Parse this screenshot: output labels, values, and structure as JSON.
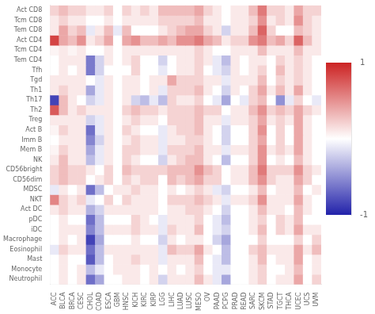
{
  "chart_data": {
    "type": "heatmap",
    "title": "",
    "rows": [
      "Act CD8",
      "Tcm CD8",
      "Tem CD8",
      "Act CD4",
      "Tcm CD4",
      "Tem CD4",
      "Tfh",
      "Tgd",
      "Th1",
      "Th17",
      "Th2",
      "Treg",
      "Act B",
      "Imm B",
      "Mem B",
      "NK",
      "CD56bright",
      "CD56dim",
      "MDSC",
      "NKT",
      "Act DC",
      "pDC",
      "iDC",
      "Macrophage",
      "Eosinophil",
      "Mast",
      "Monocyte",
      "Neutrophil"
    ],
    "categories": [
      "ACC",
      "BLCA",
      "BRCA",
      "CESC",
      "CHOL",
      "COAD",
      "ESCA",
      "GBM",
      "HNSC",
      "KICH",
      "KIRC",
      "KIRP",
      "LGG",
      "LIHC",
      "LUAD",
      "LUSC",
      "MESO",
      "OV",
      "PAAD",
      "PCPG",
      "PRAD",
      "READ",
      "SARC",
      "SKCM",
      "STAD",
      "TGCT",
      "THCA",
      "UCEC",
      "UCS",
      "UVM"
    ],
    "values": [
      [
        0.2,
        0.3,
        0.2,
        0.2,
        0.1,
        0.1,
        0.2,
        0.0,
        0.2,
        0.1,
        0.2,
        0.1,
        0.3,
        0.3,
        0.3,
        0.3,
        0.4,
        0.2,
        0.1,
        0.0,
        0.1,
        0.1,
        0.3,
        0.6,
        0.2,
        0.2,
        0.1,
        0.4,
        0.2,
        0.2
      ],
      [
        0.1,
        0.2,
        0.1,
        0.1,
        0.0,
        0.0,
        0.1,
        0.0,
        0.1,
        0.1,
        0.1,
        0.1,
        0.2,
        0.2,
        0.2,
        0.2,
        0.3,
        0.1,
        0.1,
        0.0,
        0.1,
        0.1,
        0.2,
        0.5,
        0.1,
        0.2,
        0.1,
        0.5,
        0.2,
        0.1
      ],
      [
        0.1,
        0.4,
        0.2,
        0.3,
        -0.1,
        0.1,
        0.3,
        -0.1,
        0.3,
        0.0,
        0.0,
        0.0,
        0.1,
        0.2,
        0.3,
        0.4,
        0.4,
        0.2,
        0.1,
        -0.2,
        0.1,
        0.1,
        0.3,
        0.7,
        0.2,
        0.0,
        0.0,
        0.3,
        0.2,
        0.1
      ],
      [
        0.85,
        0.4,
        0.3,
        0.5,
        0.1,
        0.2,
        0.4,
        0.0,
        0.4,
        0.5,
        0.3,
        0.3,
        0.4,
        0.3,
        0.5,
        0.5,
        0.6,
        0.4,
        0.3,
        0.1,
        0.2,
        0.2,
        0.5,
        0.6,
        0.3,
        0.4,
        0.2,
        0.7,
        0.3,
        0.1
      ],
      [
        0.05,
        0.1,
        0.05,
        0.1,
        0.0,
        0.0,
        0.1,
        0.0,
        0.1,
        0.1,
        0.1,
        0.1,
        0.1,
        0.1,
        0.1,
        0.1,
        0.2,
        0.1,
        0.0,
        0.0,
        0.1,
        0.1,
        0.1,
        0.3,
        0.1,
        0.1,
        0.1,
        0.3,
        0.1,
        0.1
      ],
      [
        0.0,
        0.1,
        0.1,
        0.1,
        -0.6,
        -0.2,
        0.1,
        0.0,
        0.1,
        0.2,
        0.0,
        0.0,
        -0.2,
        0.0,
        0.1,
        0.1,
        0.2,
        0.1,
        -0.1,
        -0.3,
        0.1,
        0.0,
        0.1,
        0.1,
        0.0,
        0.2,
        0.1,
        0.2,
        0.1,
        0.0
      ],
      [
        0.0,
        0.1,
        0.0,
        0.1,
        -0.6,
        -0.2,
        0.0,
        0.0,
        0.0,
        0.2,
        0.0,
        0.0,
        -0.1,
        0.0,
        0.1,
        0.1,
        0.2,
        0.0,
        -0.1,
        -0.2,
        0.1,
        0.0,
        0.1,
        0.2,
        0.0,
        0.3,
        0.1,
        0.2,
        0.1,
        0.0
      ],
      [
        0.1,
        0.1,
        0.1,
        0.1,
        0.0,
        -0.1,
        0.1,
        0.0,
        0.1,
        0.1,
        0.0,
        0.1,
        0.1,
        0.4,
        0.2,
        0.2,
        0.2,
        0.1,
        0.1,
        -0.1,
        0.1,
        0.1,
        0.1,
        0.3,
        0.0,
        0.2,
        0.1,
        0.2,
        0.1,
        0.0
      ],
      [
        0.1,
        0.2,
        0.1,
        0.1,
        -0.4,
        -0.1,
        0.1,
        0.0,
        0.1,
        0.1,
        0.0,
        0.1,
        -0.1,
        0.2,
        0.2,
        0.2,
        0.3,
        0.1,
        0.0,
        -0.2,
        0.1,
        0.0,
        0.2,
        0.4,
        0.1,
        0.3,
        0.1,
        0.4,
        0.1,
        0.0
      ],
      [
        -0.85,
        0.3,
        0.1,
        0.0,
        -0.2,
        -0.1,
        0.1,
        0.0,
        0.1,
        -0.2,
        -0.3,
        -0.1,
        -0.3,
        0.2,
        0.1,
        0.1,
        0.2,
        0.0,
        -0.1,
        -0.4,
        0.0,
        -0.1,
        0.2,
        0.3,
        0.0,
        -0.5,
        -0.1,
        0.2,
        0.0,
        -0.1
      ],
      [
        0.75,
        0.3,
        0.1,
        0.2,
        0.1,
        0.1,
        0.1,
        0.0,
        0.2,
        0.3,
        0.2,
        0.2,
        0.1,
        0.2,
        0.2,
        0.2,
        0.3,
        0.2,
        0.2,
        0.0,
        0.1,
        0.1,
        0.3,
        0.5,
        0.2,
        0.3,
        0.2,
        0.4,
        0.2,
        0.1
      ],
      [
        0.1,
        0.1,
        0.1,
        0.1,
        -0.2,
        -0.1,
        0.1,
        0.0,
        0.1,
        0.2,
        0.1,
        0.1,
        0.0,
        0.2,
        0.2,
        0.2,
        0.3,
        0.1,
        0.1,
        -0.1,
        0.1,
        0.1,
        0.2,
        0.4,
        0.1,
        0.2,
        0.1,
        0.4,
        0.1,
        0.0
      ],
      [
        0.05,
        0.2,
        0.1,
        0.1,
        -0.65,
        -0.1,
        0.1,
        0.0,
        0.2,
        0.1,
        0.0,
        0.0,
        -0.1,
        0.1,
        0.2,
        0.2,
        0.3,
        0.1,
        0.0,
        -0.2,
        0.0,
        0.0,
        0.2,
        0.5,
        0.0,
        0.2,
        0.0,
        0.4,
        0.1,
        0.0
      ],
      [
        0.0,
        0.1,
        0.1,
        0.1,
        -0.55,
        -0.2,
        0.1,
        0.0,
        0.1,
        0.2,
        0.1,
        0.1,
        -0.1,
        0.1,
        0.1,
        0.2,
        0.2,
        0.1,
        0.0,
        -0.2,
        0.0,
        0.0,
        0.2,
        0.4,
        0.0,
        0.2,
        0.0,
        0.4,
        0.1,
        0.0
      ],
      [
        0.05,
        0.2,
        0.1,
        0.1,
        -0.4,
        -0.1,
        0.1,
        0.0,
        0.2,
        0.2,
        0.1,
        0.1,
        -0.1,
        0.2,
        0.2,
        0.2,
        0.3,
        0.1,
        0.1,
        -0.1,
        0.1,
        0.1,
        0.2,
        0.5,
        0.1,
        0.2,
        0.1,
        0.4,
        0.1,
        0.0
      ],
      [
        0.1,
        0.3,
        0.1,
        0.1,
        -0.3,
        -0.1,
        0.1,
        0.0,
        0.2,
        0.1,
        0.0,
        0.0,
        -0.2,
        0.1,
        0.2,
        0.3,
        0.3,
        0.1,
        0.0,
        -0.3,
        0.0,
        0.0,
        0.2,
        0.5,
        0.0,
        0.1,
        0.0,
        0.3,
        0.1,
        0.0
      ],
      [
        0.2,
        0.3,
        0.2,
        0.2,
        0.1,
        0.0,
        0.2,
        0.0,
        0.3,
        0.2,
        0.2,
        0.2,
        0.2,
        0.3,
        0.3,
        0.3,
        0.5,
        0.3,
        0.2,
        0.0,
        0.1,
        0.1,
        0.3,
        0.6,
        0.2,
        0.2,
        0.2,
        0.5,
        0.2,
        0.1
      ],
      [
        0.2,
        0.3,
        0.2,
        0.2,
        0.0,
        0.1,
        0.2,
        0.0,
        0.2,
        0.1,
        0.2,
        0.2,
        0.0,
        0.3,
        0.2,
        0.3,
        0.4,
        0.2,
        0.2,
        0.0,
        0.1,
        0.1,
        0.3,
        0.5,
        0.2,
        0.1,
        0.1,
        0.4,
        0.2,
        0.0
      ],
      [
        -0.1,
        0.1,
        0.0,
        0.1,
        -0.65,
        -0.3,
        0.0,
        0.1,
        0.1,
        0.2,
        0.1,
        0.1,
        0.0,
        0.1,
        0.0,
        0.1,
        0.2,
        0.1,
        -0.1,
        -0.2,
        0.0,
        0.0,
        0.1,
        0.3,
        0.0,
        0.1,
        0.1,
        0.3,
        0.0,
        0.1
      ],
      [
        0.55,
        0.2,
        0.1,
        0.2,
        -0.1,
        0.0,
        0.2,
        0.0,
        0.2,
        0.1,
        0.1,
        0.1,
        0.0,
        0.2,
        0.2,
        0.2,
        0.3,
        0.2,
        0.1,
        -0.1,
        0.1,
        0.1,
        0.2,
        0.5,
        0.1,
        0.1,
        0.1,
        0.4,
        0.1,
        0.0
      ],
      [
        0.1,
        0.2,
        0.1,
        0.1,
        -0.35,
        -0.2,
        0.1,
        0.1,
        0.1,
        0.1,
        0.1,
        0.1,
        0.0,
        0.1,
        0.1,
        0.2,
        0.2,
        0.1,
        0.0,
        -0.2,
        0.0,
        0.0,
        0.1,
        0.3,
        0.1,
        0.1,
        0.0,
        0.3,
        0.1,
        0.0
      ],
      [
        0.0,
        0.1,
        0.0,
        0.0,
        -0.65,
        -0.3,
        0.0,
        0.0,
        0.0,
        0.2,
        0.1,
        0.0,
        -0.1,
        0.1,
        0.1,
        0.1,
        0.2,
        0.0,
        -0.1,
        -0.3,
        0.0,
        0.0,
        0.1,
        0.2,
        0.0,
        0.2,
        0.1,
        0.3,
        0.0,
        0.0
      ],
      [
        0.0,
        0.1,
        0.1,
        0.1,
        -0.55,
        -0.3,
        0.1,
        0.1,
        0.1,
        0.2,
        0.1,
        0.1,
        -0.1,
        0.2,
        0.1,
        0.1,
        0.3,
        0.0,
        -0.1,
        -0.2,
        0.0,
        0.0,
        0.1,
        0.3,
        0.0,
        0.2,
        0.1,
        0.4,
        0.1,
        0.1
      ],
      [
        0.0,
        0.1,
        0.0,
        0.1,
        -0.85,
        -0.4,
        0.0,
        0.0,
        0.0,
        0.1,
        0.0,
        0.0,
        -0.2,
        0.1,
        0.0,
        0.1,
        0.1,
        0.0,
        -0.2,
        -0.4,
        0.0,
        0.0,
        0.0,
        0.2,
        0.0,
        0.0,
        0.0,
        0.2,
        0.0,
        0.2
      ],
      [
        -0.1,
        0.2,
        0.1,
        0.1,
        -0.65,
        -0.3,
        0.1,
        0.1,
        0.1,
        0.1,
        0.1,
        0.1,
        -0.1,
        0.3,
        0.2,
        0.2,
        0.4,
        0.1,
        0.0,
        -0.3,
        0.0,
        0.0,
        0.2,
        0.3,
        0.1,
        0.1,
        0.1,
        0.4,
        0.1,
        0.3
      ],
      [
        0.0,
        0.1,
        0.0,
        0.0,
        -0.75,
        -0.3,
        0.0,
        0.1,
        0.1,
        0.2,
        0.1,
        0.1,
        -0.1,
        0.1,
        0.1,
        0.1,
        0.3,
        0.0,
        -0.1,
        -0.3,
        0.0,
        0.0,
        0.1,
        0.3,
        0.0,
        0.1,
        0.1,
        0.4,
        0.0,
        0.1
      ],
      [
        0.0,
        0.1,
        0.0,
        0.1,
        -0.3,
        -0.1,
        0.0,
        0.1,
        0.1,
        0.1,
        0.0,
        0.1,
        0.0,
        0.1,
        0.0,
        0.1,
        0.2,
        0.0,
        -0.1,
        -0.1,
        0.0,
        0.0,
        0.1,
        0.2,
        0.0,
        0.0,
        0.1,
        0.3,
        0.0,
        0.1
      ],
      [
        0.0,
        0.1,
        0.0,
        0.1,
        -0.65,
        -0.4,
        0.0,
        0.0,
        0.1,
        0.1,
        0.0,
        0.1,
        -0.2,
        0.1,
        0.1,
        0.1,
        0.3,
        0.1,
        -0.1,
        -0.4,
        0.0,
        0.0,
        0.1,
        0.2,
        0.0,
        0.1,
        0.1,
        0.4,
        0.0,
        0.2
      ]
    ],
    "colorbar": {
      "range": [
        -1,
        1
      ],
      "ticks": [
        1,
        -1
      ],
      "colors": [
        "#2222aa",
        "#ffffff",
        "#cc2222"
      ]
    },
    "grid": false
  }
}
